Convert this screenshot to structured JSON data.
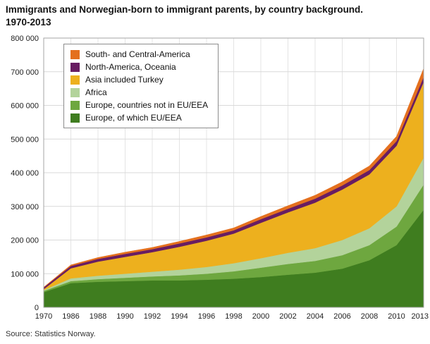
{
  "header": {
    "title_line1": "Immigrants and Norwegian-born to immigrant parents, by country background.",
    "title_line2": "1970-2013"
  },
  "footer": {
    "source": "Source: Statistics Norway."
  },
  "chart_data": {
    "type": "area",
    "stacked": true,
    "title": "Immigrants and Norwegian-born to immigrant parents, by country background. 1970-2013",
    "xlabel": "",
    "ylabel": "",
    "ylim": [
      0,
      800000
    ],
    "grid": true,
    "legend_position": "top-left",
    "x_labels": [
      "1970",
      "1986",
      "1988",
      "1990",
      "1992",
      "1994",
      "1996",
      "1998",
      "2000",
      "2002",
      "2004",
      "2006",
      "2008",
      "2010",
      "2013"
    ],
    "y_ticks": [
      "0",
      "100 000",
      "200 000",
      "300 000",
      "400 000",
      "500 000",
      "600 000",
      "700 000",
      "800 000"
    ],
    "series_note": "series listed in legend order (top first); stacking bottom layer is the last entry",
    "series": [
      {
        "name": "South- and Central-America",
        "color": "#e4701e",
        "values": [
          1000,
          3000,
          4000,
          5000,
          5000,
          6000,
          7000,
          7000,
          8000,
          9000,
          10000,
          11000,
          12000,
          14000,
          25000
        ]
      },
      {
        "name": "North-America, Oceania",
        "color": "#681d62",
        "values": [
          5000,
          7000,
          8000,
          9000,
          9000,
          10000,
          10000,
          10000,
          11000,
          11000,
          12000,
          12000,
          13000,
          14000,
          15000
        ]
      },
      {
        "name": "Asia included Turkey",
        "color": "#edb01e",
        "values": [
          3000,
          30000,
          42000,
          50000,
          58000,
          68000,
          78000,
          88000,
          105000,
          120000,
          135000,
          150000,
          160000,
          180000,
          225000
        ]
      },
      {
        "name": "Africa",
        "color": "#b3d39b",
        "values": [
          2000,
          8000,
          10000,
          12000,
          14000,
          17000,
          20000,
          24000,
          28000,
          33000,
          38000,
          45000,
          50000,
          60000,
          80000
        ]
      },
      {
        "name": "Europe, countries not in EU/EEA",
        "color": "#6ea73f",
        "values": [
          4000,
          6000,
          8000,
          10000,
          12000,
          15000,
          18000,
          22000,
          28000,
          32000,
          35000,
          40000,
          45000,
          55000,
          75000
        ]
      },
      {
        "name": "Europe, of which EU/EEA",
        "color": "#3f7d1f",
        "values": [
          45000,
          72000,
          76000,
          78000,
          80000,
          80000,
          82000,
          85000,
          90000,
          97000,
          103000,
          115000,
          140000,
          185000,
          290000
        ]
      }
    ]
  }
}
